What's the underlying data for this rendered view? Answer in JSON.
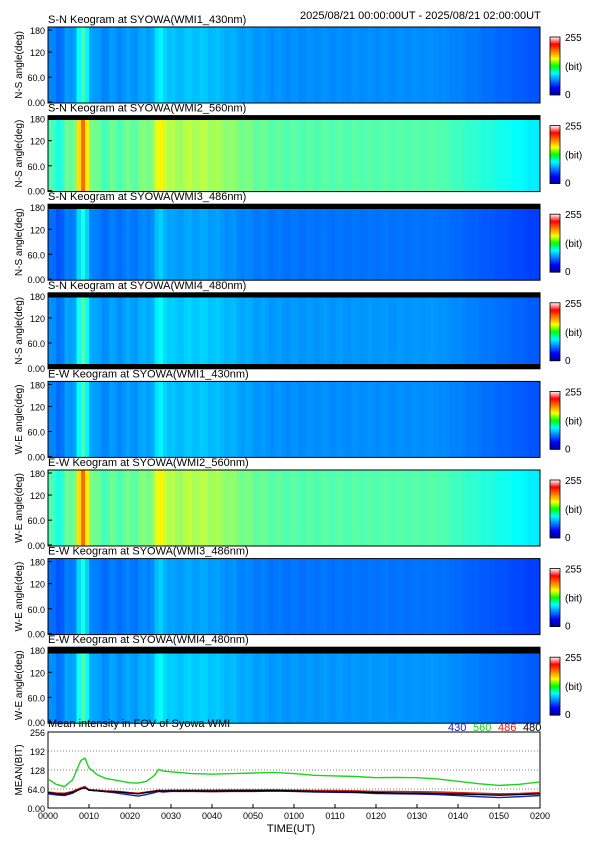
{
  "header": {
    "time_range": "2025/08/21 00:00:00UT - 2025/08/21 02:00:00UT"
  },
  "colorbar": {
    "max_label": "255",
    "unit_label": "(bit)",
    "min_label": "0"
  },
  "keograms": [
    {
      "title": "S-N Keogram at SYOWA(WMI1_430nm)",
      "ylabel": "N-S angle(deg)",
      "ticks": [
        "180",
        "120",
        "60.0",
        "0.00"
      ],
      "level": 0.3,
      "band": "none",
      "rows_fraction": 1.0
    },
    {
      "title": "S-N Keogram at SYOWA(WMI2_560nm)",
      "ylabel": "N-S angle(deg)",
      "ticks": [
        "180",
        "120",
        "60.0",
        "0.00"
      ],
      "level": 0.52,
      "band": "top",
      "rows_fraction": 0.94
    },
    {
      "title": "S-N Keogram at SYOWA(WMI3_486nm)",
      "ylabel": "N-S angle(deg)",
      "ticks": [
        "180",
        "120",
        "60.0",
        "0.00"
      ],
      "level": 0.27,
      "band": "top",
      "rows_fraction": 0.94
    },
    {
      "title": "S-N Keogram at SYOWA(WMI4_480nm)",
      "ylabel": "N-S angle(deg)",
      "ticks": [
        "180",
        "120",
        "60.0",
        "0.00"
      ],
      "level": 0.31,
      "band": "both",
      "rows_fraction": 0.88
    },
    {
      "title": "E-W Keogram at SYOWA(WMI1_430nm)",
      "ylabel": "W-E angle(deg)",
      "ticks": [
        "180",
        "120",
        "60.0",
        "0.00"
      ],
      "level": 0.3,
      "band": "none",
      "rows_fraction": 1.0
    },
    {
      "title": "E-W Keogram at SYOWA(WMI2_560nm)",
      "ylabel": "W-E angle(deg)",
      "ticks": [
        "180",
        "120",
        "60.0",
        "0.00"
      ],
      "level": 0.52,
      "band": "none",
      "rows_fraction": 1.0
    },
    {
      "title": "E-W Keogram at SYOWA(WMI3_486nm)",
      "ylabel": "W-E angle(deg)",
      "ticks": [
        "180",
        "120",
        "60.0",
        "0.00"
      ],
      "level": 0.27,
      "band": "none",
      "rows_fraction": 1.0
    },
    {
      "title": "E-W Keogram at SYOWA(WMI4_480nm)",
      "ylabel": "W-E angle(deg)",
      "ticks": [
        "180",
        "120",
        "60.0",
        "0.00"
      ],
      "level": 0.31,
      "band": "top",
      "rows_fraction": 0.92
    }
  ],
  "chart_data": {
    "type": "line",
    "title": "Mean intensity in FOV of Syowa WMI",
    "xlabel": "TIME(UT)",
    "ylabel": "MEAN(BIT)",
    "x_ticks": [
      "0000",
      "0010",
      "0020",
      "0030",
      "0040",
      "0050",
      "0100",
      "0110",
      "0120",
      "0130",
      "0140",
      "0150",
      "0200"
    ],
    "y_ticks": [
      "256",
      "192",
      "128",
      "64.0",
      "0.00"
    ],
    "xlim": [
      0,
      120
    ],
    "ylim": [
      0,
      256
    ],
    "x": [
      0,
      2,
      4,
      6,
      8,
      9,
      10,
      12,
      14,
      16,
      18,
      20,
      22,
      24,
      26,
      27,
      28,
      30,
      35,
      40,
      45,
      50,
      55,
      60,
      65,
      70,
      75,
      80,
      85,
      90,
      95,
      100,
      105,
      110,
      115,
      120
    ],
    "series": [
      {
        "name": "430",
        "color": "#1c1cb4",
        "values": [
          48,
          44,
          42,
          50,
          66,
          72,
          60,
          58,
          55,
          52,
          48,
          44,
          40,
          45,
          52,
          56,
          54,
          56,
          56,
          55,
          56,
          56,
          57,
          56,
          54,
          53,
          52,
          49,
          48,
          47,
          45,
          42,
          38,
          35,
          38,
          42
        ]
      },
      {
        "name": "560",
        "color": "#1ed21e",
        "values": [
          98,
          80,
          72,
          95,
          160,
          168,
          135,
          112,
          100,
          95,
          90,
          85,
          84,
          90,
          110,
          130,
          125,
          122,
          116,
          114,
          116,
          118,
          120,
          116,
          110,
          108,
          106,
          102,
          103,
          102,
          98,
          90,
          82,
          76,
          80,
          88
        ]
      },
      {
        "name": "486",
        "color": "#d21e1e",
        "values": [
          54,
          51,
          50,
          56,
          68,
          72,
          62,
          60,
          58,
          57,
          55,
          52,
          50,
          54,
          58,
          60,
          59,
          60,
          60,
          60,
          61,
          61,
          61,
          60,
          59,
          59,
          58,
          56,
          56,
          55,
          54,
          52,
          50,
          48,
          49,
          52
        ]
      },
      {
        "name": "480",
        "color": "#000000",
        "values": [
          52,
          48,
          46,
          53,
          64,
          68,
          60,
          58,
          56,
          55,
          53,
          50,
          48,
          52,
          56,
          58,
          57,
          58,
          58,
          57,
          58,
          58,
          59,
          58,
          56,
          55,
          54,
          52,
          51,
          50,
          49,
          47,
          45,
          43,
          45,
          48
        ]
      }
    ]
  }
}
